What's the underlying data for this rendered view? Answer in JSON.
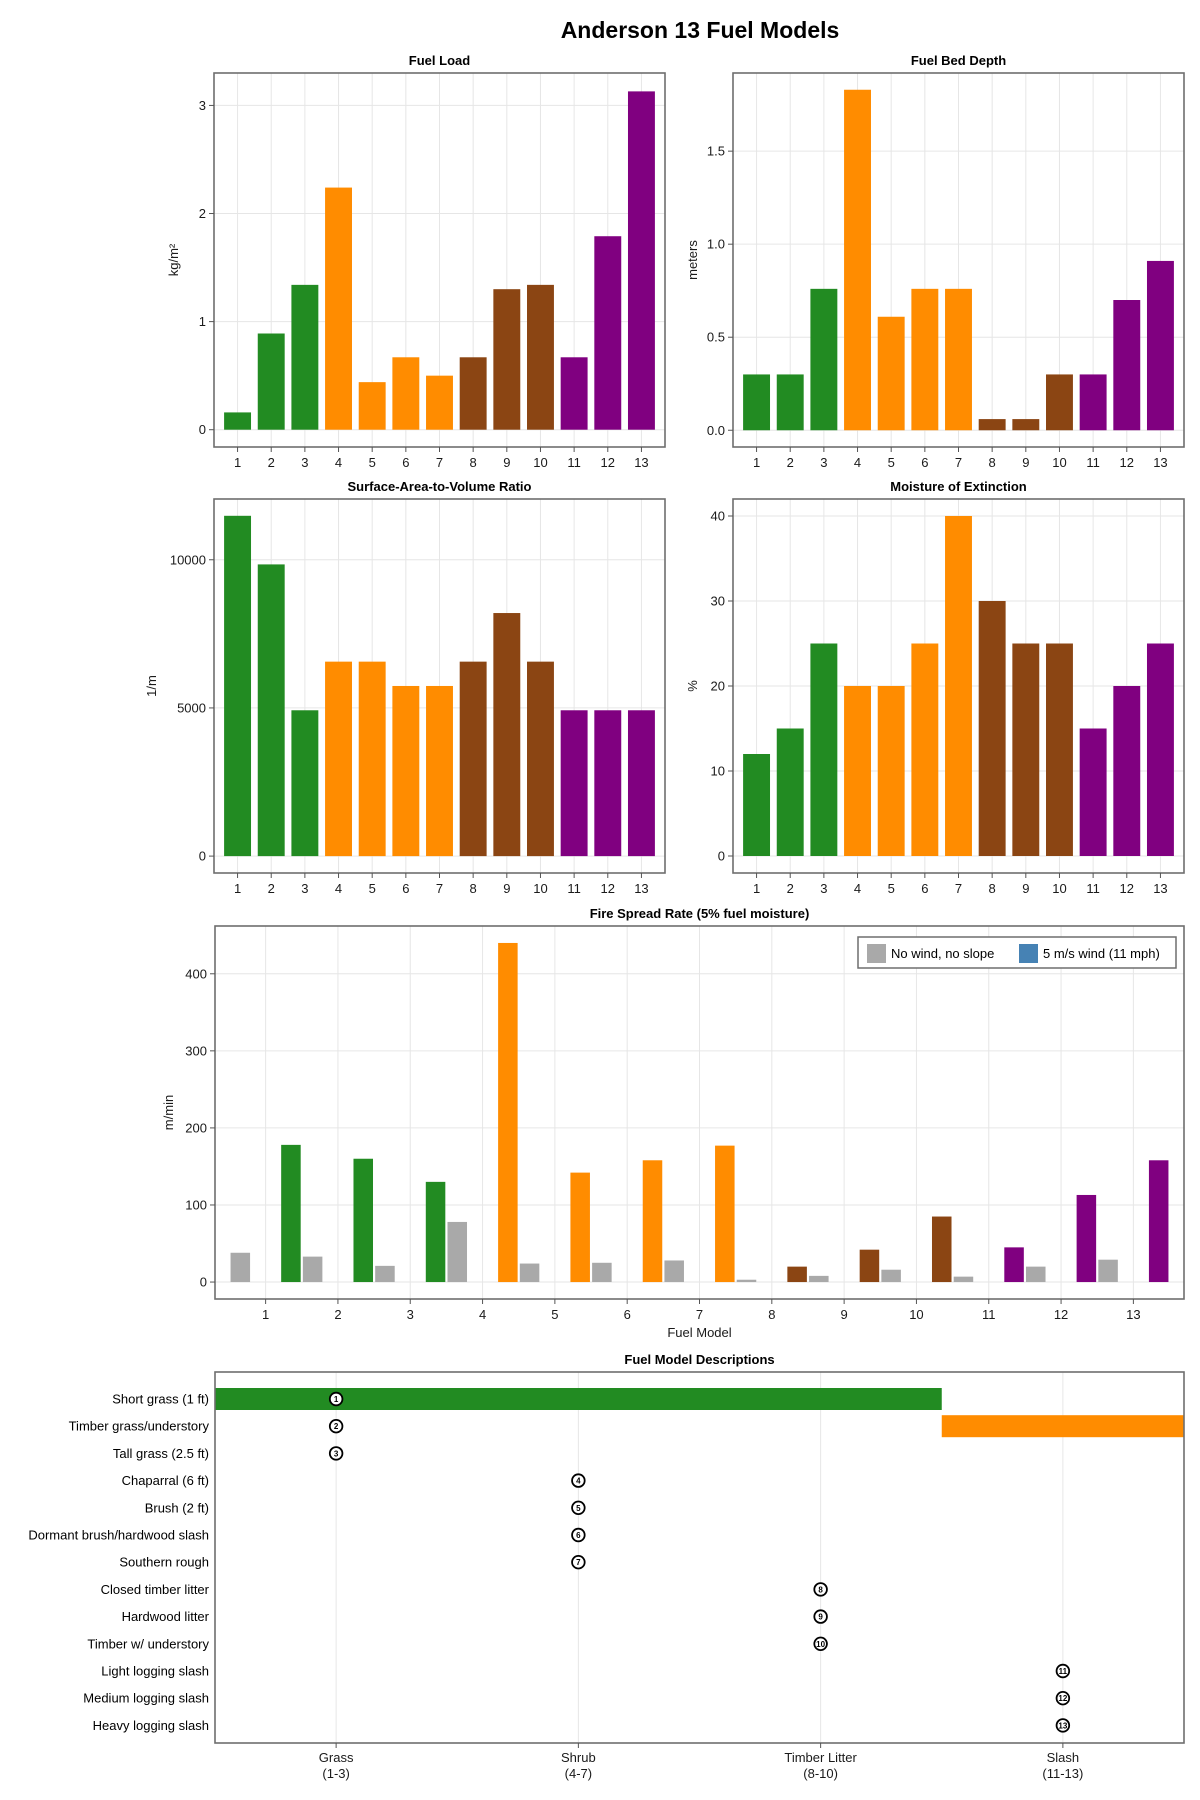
{
  "figure_title": "Anderson 13 Fuel Models",
  "colors": {
    "grass": "#228B22",
    "shrub": "#FF8C00",
    "timber_litter": "#8B4513",
    "slash": "#800080",
    "no_wind": "#A9A9A9",
    "wind_legend": "#4682B4"
  },
  "chart_data": [
    {
      "id": "fuel_load",
      "type": "bar",
      "title": "Fuel Load",
      "xlabel": "",
      "ylabel": "kg/m²",
      "categories": [
        "1",
        "2",
        "3",
        "4",
        "5",
        "6",
        "7",
        "8",
        "9",
        "10",
        "11",
        "12",
        "13"
      ],
      "values": [
        0.16,
        0.89,
        1.34,
        2.24,
        0.44,
        0.67,
        0.5,
        0.67,
        1.3,
        1.34,
        0.67,
        1.79,
        3.13
      ],
      "groups": [
        "grass",
        "grass",
        "grass",
        "shrub",
        "shrub",
        "shrub",
        "shrub",
        "timber_litter",
        "timber_litter",
        "timber_litter",
        "slash",
        "slash",
        "slash"
      ],
      "yticks": [
        0,
        1,
        2,
        3
      ],
      "ytick_labels": [
        "0",
        "1",
        "2",
        "3"
      ],
      "ylim": [
        -0.16,
        3.3
      ],
      "grid": true
    },
    {
      "id": "fuel_bed_depth",
      "type": "bar",
      "title": "Fuel Bed Depth",
      "xlabel": "",
      "ylabel": "meters",
      "categories": [
        "1",
        "2",
        "3",
        "4",
        "5",
        "6",
        "7",
        "8",
        "9",
        "10",
        "11",
        "12",
        "13"
      ],
      "values": [
        0.3,
        0.3,
        0.76,
        1.83,
        0.61,
        0.76,
        0.76,
        0.06,
        0.06,
        0.3,
        0.3,
        0.7,
        0.91
      ],
      "groups": [
        "grass",
        "grass",
        "grass",
        "shrub",
        "shrub",
        "shrub",
        "shrub",
        "timber_litter",
        "timber_litter",
        "timber_litter",
        "slash",
        "slash",
        "slash"
      ],
      "yticks": [
        0,
        0.5,
        1.0,
        1.5
      ],
      "ytick_labels": [
        "0.0",
        "0.5",
        "1.0",
        "1.5"
      ],
      "ylim": [
        -0.09,
        1.92
      ],
      "grid": true
    },
    {
      "id": "sav_ratio",
      "type": "bar",
      "title": "Surface-Area-to-Volume Ratio",
      "xlabel": "",
      "ylabel": "1/m",
      "categories": [
        "1",
        "2",
        "3",
        "4",
        "5",
        "6",
        "7",
        "8",
        "9",
        "10",
        "11",
        "12",
        "13"
      ],
      "values": [
        11483,
        9843,
        4921,
        6562,
        6562,
        5741,
        5741,
        6562,
        8202,
        6562,
        4921,
        4921,
        4921
      ],
      "groups": [
        "grass",
        "grass",
        "grass",
        "shrub",
        "shrub",
        "shrub",
        "shrub",
        "timber_litter",
        "timber_litter",
        "timber_litter",
        "slash",
        "slash",
        "slash"
      ],
      "yticks": [
        0,
        5000,
        10000
      ],
      "ytick_labels": [
        "0",
        "5000",
        "10000"
      ],
      "ylim": [
        -570,
        12050
      ],
      "grid": true
    },
    {
      "id": "moisture_extinction",
      "type": "bar",
      "title": "Moisture of Extinction",
      "xlabel": "",
      "ylabel": "%",
      "categories": [
        "1",
        "2",
        "3",
        "4",
        "5",
        "6",
        "7",
        "8",
        "9",
        "10",
        "11",
        "12",
        "13"
      ],
      "values": [
        12,
        15,
        25,
        20,
        20,
        25,
        40,
        30,
        25,
        25,
        15,
        20,
        25
      ],
      "groups": [
        "grass",
        "grass",
        "grass",
        "shrub",
        "shrub",
        "shrub",
        "shrub",
        "timber_litter",
        "timber_litter",
        "timber_litter",
        "slash",
        "slash",
        "slash"
      ],
      "yticks": [
        0,
        10,
        20,
        30,
        40
      ],
      "ytick_labels": [
        "0",
        "10",
        "20",
        "30",
        "40"
      ],
      "ylim": [
        -2,
        42
      ],
      "grid": true
    },
    {
      "id": "fire_spread",
      "type": "bar",
      "title": "Fire Spread Rate (5% fuel moisture)",
      "xlabel": "Fuel Model",
      "ylabel": "m/min",
      "categories": [
        "1",
        "2",
        "3",
        "4",
        "5",
        "6",
        "7",
        "8",
        "9",
        "10",
        "11",
        "12",
        "13"
      ],
      "series": [
        {
          "name": "No wind, no slope",
          "color_key": "no_wind",
          "values": [
            38,
            33,
            21,
            78,
            24,
            25,
            28,
            3,
            8,
            16,
            7,
            20,
            29
          ]
        },
        {
          "name": "5 m/s wind (11 mph)",
          "color_key": "wind_legend",
          "values": [
            178,
            160,
            130,
            440,
            142,
            158,
            177,
            20,
            42,
            85,
            45,
            113,
            158
          ]
        }
      ],
      "groups": [
        "grass",
        "grass",
        "grass",
        "shrub",
        "shrub",
        "shrub",
        "shrub",
        "timber_litter",
        "timber_litter",
        "timber_litter",
        "slash",
        "slash",
        "slash"
      ],
      "yticks": [
        0,
        100,
        200,
        300,
        400
      ],
      "ytick_labels": [
        "0",
        "100",
        "200",
        "300",
        "400"
      ],
      "ylim": [
        -22,
        462
      ],
      "legend_position": "top-right",
      "grid": true
    },
    {
      "id": "descriptions",
      "type": "table",
      "title": "Fuel Model Descriptions",
      "rows": [
        {
          "model": 1,
          "marker": "①",
          "label": "Short grass (1 ft)",
          "group": 1
        },
        {
          "model": 2,
          "marker": "②",
          "label": "Timber grass/understory",
          "group": 1
        },
        {
          "model": 3,
          "marker": "③",
          "label": "Tall grass (2.5 ft)",
          "group": 1
        },
        {
          "model": 4,
          "marker": "④",
          "label": "Chaparral (6 ft)",
          "group": 2
        },
        {
          "model": 5,
          "marker": "⑤",
          "label": "Brush (2 ft)",
          "group": 2
        },
        {
          "model": 6,
          "marker": "⑥",
          "label": "Dormant brush/hardwood slash",
          "group": 2
        },
        {
          "model": 7,
          "marker": "⑦",
          "label": "Southern rough",
          "group": 2
        },
        {
          "model": 8,
          "marker": "⑧",
          "label": "Closed timber litter",
          "group": 3
        },
        {
          "model": 9,
          "marker": "⑨",
          "label": "Hardwood litter",
          "group": 3
        },
        {
          "model": 10,
          "marker": "⑩",
          "label": "Timber w/ understory",
          "group": 3
        },
        {
          "model": 11,
          "marker": "⑪",
          "label": "Light logging slash",
          "group": 4
        },
        {
          "model": 12,
          "marker": "⑫",
          "label": "Medium logging slash",
          "group": 4
        },
        {
          "model": 13,
          "marker": "⑬",
          "label": "Heavy logging slash",
          "group": 4
        }
      ],
      "x_categories": [
        {
          "line1": "Grass",
          "line2": "(1-3)"
        },
        {
          "line1": "Shrub",
          "line2": "(4-7)"
        },
        {
          "line1": "Timber Litter",
          "line2": "(8-10)"
        },
        {
          "line1": "Slash",
          "line2": "(11-13)"
        }
      ],
      "xlim": [
        0.5,
        4.5
      ],
      "spans": [
        {
          "row": 1,
          "x_start": 0.5,
          "x_end": 3.5,
          "color_key": "grass"
        },
        {
          "row": 2,
          "x_start": 3.5,
          "x_end": 4.5,
          "color_key": "shrub"
        }
      ]
    }
  ]
}
